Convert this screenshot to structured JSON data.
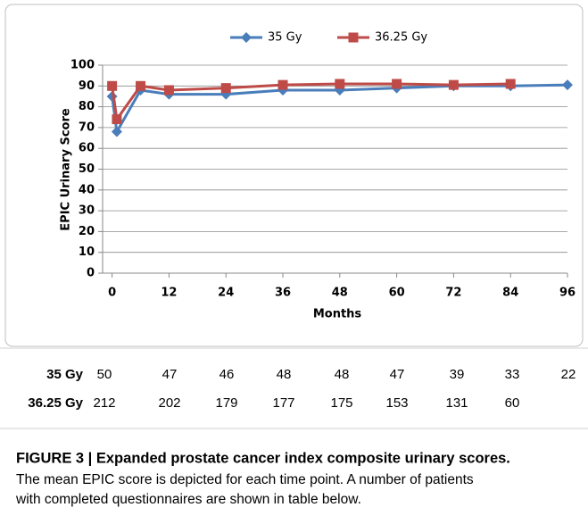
{
  "chart_data": {
    "type": "line",
    "x": [
      0,
      1,
      6,
      12,
      24,
      36,
      48,
      60,
      72,
      84,
      96
    ],
    "series": [
      {
        "name": "35 Gy",
        "color": "#4a7ebb",
        "marker": "diamond",
        "values": [
          85,
          68,
          88,
          86,
          86,
          88,
          88,
          89,
          90,
          90,
          90.5
        ]
      },
      {
        "name": "36.25 Gy",
        "color": "#be4b48",
        "marker": "square",
        "values": [
          90,
          74,
          90,
          88,
          89,
          90.5,
          91,
          91,
          90.5,
          91,
          null
        ]
      }
    ],
    "xlim": [
      -2,
      96
    ],
    "xticks": [
      0,
      12,
      24,
      36,
      48,
      60,
      72,
      84,
      96
    ],
    "ylim": [
      0,
      100
    ],
    "yticks": [
      0,
      10,
      20,
      30,
      40,
      50,
      60,
      70,
      80,
      90,
      100
    ],
    "y_label": "EPIC Urinary Score",
    "x_label": "Months",
    "grid": true,
    "legend": "top"
  },
  "table": {
    "rows": [
      [
        "35 Gy",
        50,
        47,
        46,
        48,
        48,
        47,
        39,
        33,
        22
      ],
      [
        "36.25 Gy",
        212,
        202,
        179,
        177,
        175,
        153,
        131,
        60
      ]
    ]
  },
  "caption": {
    "title": "FIGURE 3 | Expanded prostate cancer index composite urinary scores.",
    "lines": [
      "The mean EPIC score is depicted for each time point. A number of patients",
      "with completed questionnaires are shown in table below."
    ]
  }
}
